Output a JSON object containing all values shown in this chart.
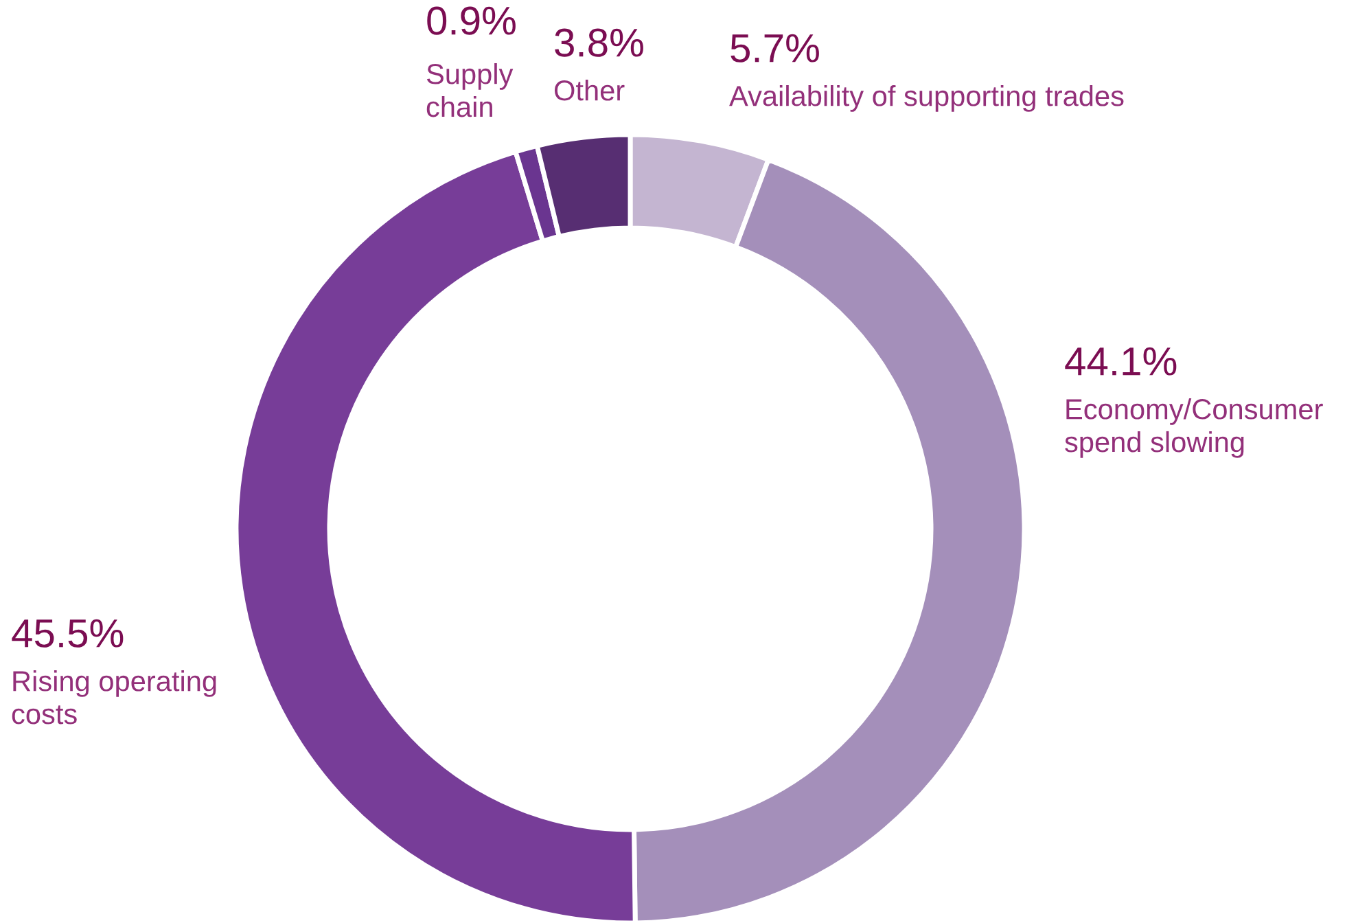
{
  "chart_data": {
    "type": "donut",
    "categories": [
      "Availability of supporting trades",
      "Economy/Consumer\nspend slowing",
      "Rising operating\ncosts",
      "Supply\nchain",
      "Other"
    ],
    "values": [
      5.7,
      44.1,
      45.5,
      0.9,
      3.8
    ],
    "value_labels": [
      "5.7%",
      "44.1%",
      "45.5%",
      "0.9%",
      "3.8%"
    ],
    "colors": [
      "#c4b5d1",
      "#a48fba",
      "#773d98",
      "#6a3590",
      "#572e72"
    ],
    "legend": false
  }
}
